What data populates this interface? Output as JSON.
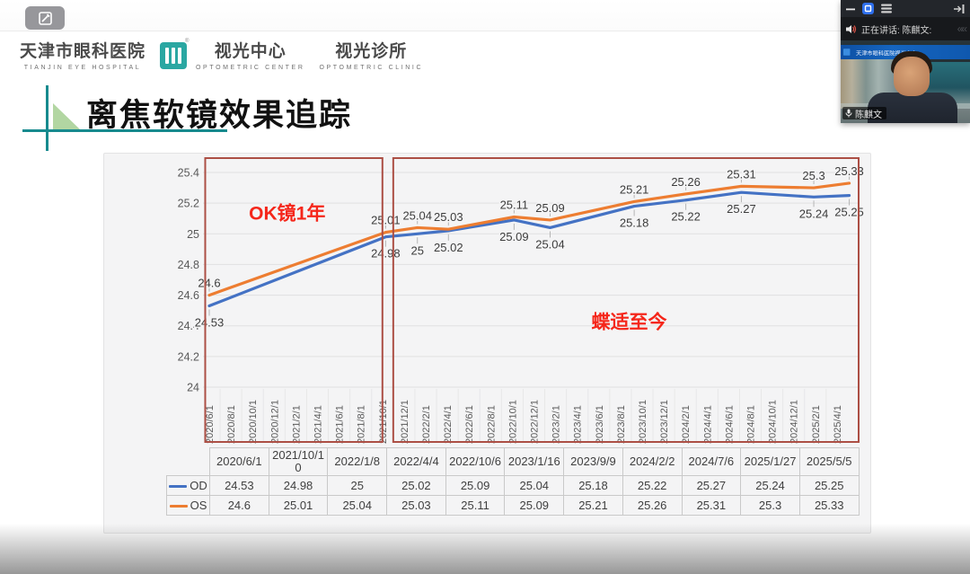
{
  "meeting": {
    "speaking_label": "正在讲话: 陈麒文:",
    "participant_name": "陈麒文",
    "video_banner_text": "天津市眼科医院视光中心"
  },
  "slide": {
    "logo": {
      "hospital_cn": "天津市眼科医院",
      "hospital_en": "TIANJIN EYE HOSPITAL",
      "center_cn": "视光中心",
      "center_en": "OPTOMETRIC CENTER",
      "clinic_cn": "视光诊所",
      "clinic_en": "OPTOMETRIC CLINIC",
      "registered_mark": "®"
    },
    "title": "离焦软镜效果追踪"
  },
  "chart_data": {
    "type": "line",
    "title": "",
    "grid": true,
    "x_axis": {
      "axis_start": "2020/6/1",
      "axis_end": "2025/6/1",
      "tick_labels": [
        "2020/6/1",
        "2020/8/1",
        "2020/10/1",
        "2020/12/1",
        "2021/2/1",
        "2021/4/1",
        "2021/6/1",
        "2021/8/1",
        "2021/10/1",
        "2021/12/1",
        "2022/2/1",
        "2022/4/1",
        "2022/6/1",
        "2022/8/1",
        "2022/10/1",
        "2022/12/1",
        "2023/2/1",
        "2023/4/1",
        "2023/6/1",
        "2023/8/1",
        "2023/10/1",
        "2023/12/1",
        "2024/2/1",
        "2024/4/1",
        "2024/6/1",
        "2024/8/1",
        "2024/10/1",
        "2024/12/1",
        "2025/2/1",
        "2025/4/1"
      ]
    },
    "y_axis": {
      "min": 24,
      "max": 25.4,
      "ticks": [
        24,
        24.2,
        24.4,
        24.6,
        24.8,
        25,
        25.2,
        25.4
      ]
    },
    "point_dates": [
      "2020/6/1",
      "2021/10/10",
      "2022/1/8",
      "2022/4/4",
      "2022/10/6",
      "2023/1/16",
      "2023/9/9",
      "2024/2/2",
      "2024/7/6",
      "2025/1/27",
      "2025/5/5"
    ],
    "series": [
      {
        "name": "OD",
        "color": "#4472C4",
        "values": [
          24.53,
          24.98,
          25,
          25.02,
          25.09,
          25.04,
          25.18,
          25.22,
          25.27,
          25.24,
          25.25
        ]
      },
      {
        "name": "OS",
        "color": "#ED7D31",
        "values": [
          24.6,
          25.01,
          25.04,
          25.03,
          25.11,
          25.09,
          25.21,
          25.26,
          25.31,
          25.3,
          25.33
        ]
      }
    ],
    "annotations": [
      {
        "text": "OK镜1年",
        "type": "box",
        "from": "2020/5/20",
        "to": "2021/10/1",
        "label_month": 7.2,
        "label_value": 25.14,
        "text_color": "#F5261A",
        "box_color": "#AC4F45"
      },
      {
        "text": "蝶适至今",
        "type": "box",
        "from": "2021/11/1",
        "to": "2025/6/1",
        "label_month": 38.8,
        "label_value": 24.43,
        "text_color": "#F5261A",
        "box_color": "#AC4F45"
      }
    ],
    "legend_position": "data-table"
  },
  "data_table": {
    "columns": [
      "2020/6/1",
      "2021/10/10",
      "2022/1/8",
      "2022/4/4",
      "2022/10/6",
      "2023/1/16",
      "2023/9/9",
      "2024/2/2",
      "2024/7/6",
      "2025/1/27",
      "2025/5/5"
    ],
    "rows": [
      {
        "label": "OD",
        "values": [
          "24.53",
          "24.98",
          "25",
          "25.02",
          "25.09",
          "25.04",
          "25.18",
          "25.22",
          "25.27",
          "25.24",
          "25.25"
        ]
      },
      {
        "label": "OS",
        "values": [
          "24.6",
          "25.01",
          "25.04",
          "25.03",
          "25.11",
          "25.09",
          "25.21",
          "25.26",
          "25.31",
          "25.3",
          "25.33"
        ]
      }
    ]
  }
}
